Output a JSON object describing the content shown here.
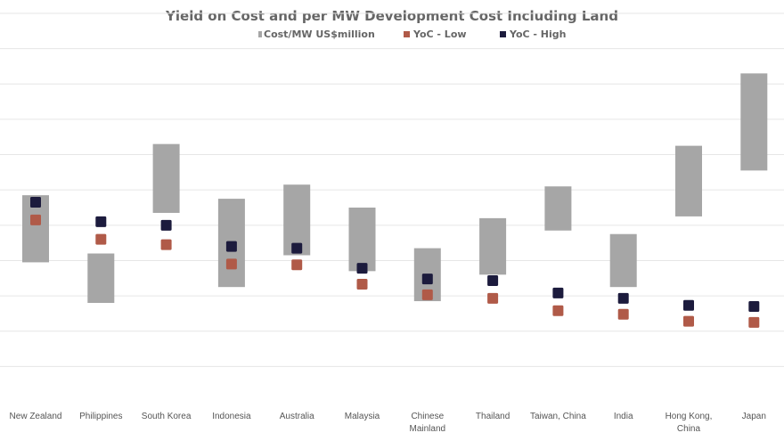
{
  "chart_data": {
    "type": "bar",
    "title": "Yield on Cost and per MW Development Cost Including Land",
    "legend_position": "top",
    "grid": true,
    "categories": [
      [
        "New Zealand"
      ],
      [
        "Philippines"
      ],
      [
        "South Korea"
      ],
      [
        "Indonesia"
      ],
      [
        "Australia"
      ],
      [
        "Malaysia"
      ],
      [
        "Chinese",
        "Mainland"
      ],
      [
        "Thailand"
      ],
      [
        "Taiwan, China"
      ],
      [
        "India"
      ],
      [
        "Hong Kong,",
        "China"
      ],
      [
        "Japan"
      ]
    ],
    "ylim": [
      0,
      11
    ],
    "series": [
      {
        "name": "Cost/MW US$million",
        "kind": "floating-range",
        "color": "#a6a6a6",
        "values": [
          [
            3.95,
            5.85
          ],
          [
            2.8,
            4.2
          ],
          [
            5.35,
            7.3
          ],
          [
            3.25,
            5.75
          ],
          [
            4.15,
            6.15
          ],
          [
            3.7,
            5.5
          ],
          [
            2.85,
            4.35
          ],
          [
            3.6,
            5.2
          ],
          [
            4.85,
            6.1
          ],
          [
            3.25,
            4.75
          ],
          [
            5.25,
            7.25
          ],
          [
            6.55,
            9.3
          ]
        ]
      },
      {
        "name": "YoC - Low",
        "kind": "marker",
        "color": "#b05a48",
        "values": [
          5.15,
          4.6,
          4.45,
          3.9,
          3.88,
          3.33,
          3.03,
          2.93,
          2.58,
          2.48,
          2.28,
          2.25
        ]
      },
      {
        "name": "YoC - High",
        "kind": "marker",
        "color": "#1c1b3d",
        "values": [
          5.65,
          5.1,
          5.0,
          4.4,
          4.35,
          3.78,
          3.48,
          3.43,
          3.08,
          2.93,
          2.73,
          2.7
        ]
      }
    ]
  }
}
